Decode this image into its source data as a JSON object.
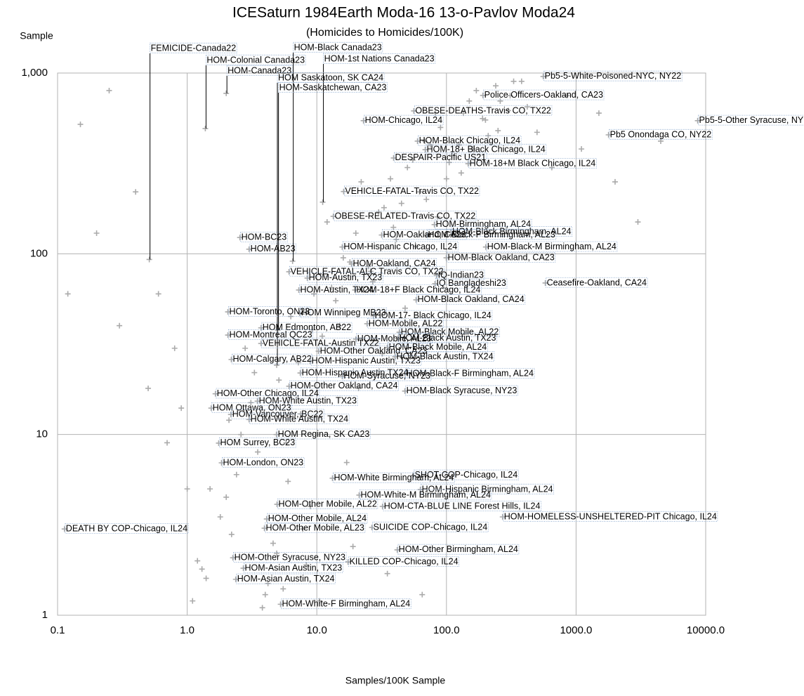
{
  "chart_data": {
    "type": "scatter",
    "title": "ICESaturn 1984Earth Moda-16 13-o-Pavlov Moda24",
    "subtitle": "(Homicides to Homicides/100K)",
    "y_label": "Sample",
    "x_label": "Samples/100K Sample",
    "log_x": true,
    "log_y": true,
    "grid": true,
    "color": "#aaaaaa",
    "xlim": [
      0.1,
      10000
    ],
    "ylim": [
      1,
      1000
    ],
    "xticks": [
      0.1,
      {
        "value": 1,
        "label": "1.0"
      },
      {
        "value": 10,
        "label": "10.0"
      },
      {
        "value": 100,
        "label": "100.0"
      },
      {
        "value": 1000,
        "label": "1000.0"
      },
      {
        "value": 10000,
        "label": "10000.0"
      }
    ],
    "yticks": [
      1,
      10,
      100,
      {
        "value": 1000,
        "label": "1,000"
      }
    ],
    "x": [
      1.2,
      1.5,
      2.1,
      2.8,
      3.5,
      4.2,
      5.1,
      6.3,
      7.8,
      9.5,
      12,
      15,
      18,
      22,
      27,
      33,
      41,
      50,
      62,
      75,
      90,
      110,
      135,
      170,
      210,
      260,
      330,
      420,
      1.1,
      1.8,
      2.4,
      3.1,
      4.6,
      5.8,
      7.2,
      8.9,
      11,
      14,
      17,
      21,
      26,
      32,
      39,
      48,
      58,
      70,
      85,
      105,
      130,
      160,
      200,
      250,
      310,
      0.15,
      0.25,
      0.4,
      0.6,
      0.8,
      0.9,
      1.3,
      2.0,
      2.6,
      3.3,
      4.0,
      4.9,
      6.0,
      7.5,
      9.2,
      13,
      16,
      20,
      25,
      30,
      37,
      45,
      55,
      68,
      82,
      100,
      125,
      150,
      190,
      240,
      300,
      380,
      500,
      650,
      850,
      1100,
      1500,
      2000,
      3000,
      4500,
      0.12,
      0.2,
      0.3,
      0.5,
      0.7,
      1.0,
      1.4,
      2.2,
      3.8,
      5.5,
      8.3,
      10.5,
      19,
      35,
      65
    ],
    "values": [
      2,
      5,
      12,
      30,
      8,
      1.5,
      20,
      45,
      3,
      60,
      150,
      40,
      90,
      250,
      70,
      180,
      120,
      300,
      220,
      400,
      500,
      350,
      600,
      800,
      450,
      700,
      900,
      650,
      1.2,
      3.5,
      6,
      15,
      2.5,
      9,
      25,
      4,
      35,
      55,
      7,
      18,
      80,
      28,
      140,
      50,
      110,
      200,
      160,
      320,
      280,
      380,
      550,
      480,
      750,
      520,
      800,
      220,
      60,
      30,
      14,
      1.8,
      4.5,
      10,
      22,
      1.3,
      2.2,
      5.5,
      13,
      38,
      65,
      95,
      130,
      85,
      170,
      260,
      190,
      330,
      420,
      600,
      260,
      400,
      700,
      560,
      850,
      620,
      900,
      470,
      300,
      750,
      380,
      600,
      250,
      150,
      420,
      60,
      130,
      40,
      18,
      9,
      5,
      1.6,
      2.8,
      1.1,
      1.4,
      1.9,
      1.2,
      2.4,
      1.7,
      1.3
    ],
    "annotations": [
      {
        "text": "FEMICIDE-Canada22",
        "x": 0.51,
        "y": 93
      },
      {
        "text": "HOM-Colonial Canada23",
        "x": 1.38,
        "y": 493
      },
      {
        "text": "HOM-Canada23",
        "x": 2.0,
        "y": 772
      },
      {
        "text": "HOM-Black Canada23",
        "x": 6.5,
        "y": 91
      },
      {
        "text": "HOM-1st Nations Canada23",
        "x": 11.1,
        "y": 193
      },
      {
        "text": "HOM Saskatoon, SK CA24",
        "x": 4.9,
        "y": 24.2
      },
      {
        "text": "HOM-Saskatchewan, CA23",
        "x": 5.0,
        "y": 37.8
      },
      {
        "text": "Pb5-5-White-Poisoned-NYC, NY22",
        "x": 558,
        "y": 957
      },
      {
        "text": "Police Officers-Oakland, CA23",
        "x": 191,
        "y": 752
      },
      {
        "text": "Pb5-5-Other Syracuse, NY",
        "x": 8670,
        "y": 545
      },
      {
        "text": "OBESE-DEATHS-Travis CO, TX22",
        "x": 56,
        "y": 617
      },
      {
        "text": "HOM-Chicago, IL24",
        "x": 22.9,
        "y": 545
      },
      {
        "text": "Pb5 Onondaga CO, NY22",
        "x": 1780,
        "y": 455
      },
      {
        "text": "HOM-Black Chicago, IL24",
        "x": 59.8,
        "y": 420
      },
      {
        "text": "HOM-18+ Black Chicago, IL24",
        "x": 68.6,
        "y": 377
      },
      {
        "text": "DESPAIR-Pacific US21",
        "x": 39.1,
        "y": 339
      },
      {
        "text": "HOM-18+M Black Chicago, IL24",
        "x": 147,
        "y": 315
      },
      {
        "text": "VEHICLE-FATAL-Travis CO, TX22",
        "x": 16.1,
        "y": 221
      },
      {
        "text": "OBESE-RELATED-Travis CO, TX22",
        "x": 13.4,
        "y": 161
      },
      {
        "text": "HOM-Birmingham, AL24",
        "x": 80.7,
        "y": 145
      },
      {
        "text": "HOM-Black Birmingham, AL24",
        "x": 108,
        "y": 132
      },
      {
        "text": "HOM-Oakland, CA23",
        "x": 31.6,
        "y": 127
      },
      {
        "text": "HOM-Black-F Birmingham, AL23",
        "x": 70.3,
        "y": 127
      },
      {
        "text": "HOM-Hispanic Chicago, IL24",
        "x": 15.7,
        "y": 109
      },
      {
        "text": "HOM-Black-M Birmingham, AL24",
        "x": 201,
        "y": 109
      },
      {
        "text": "HOM-BC23",
        "x": 2.55,
        "y": 123
      },
      {
        "text": "HOM-AB23",
        "x": 3.0,
        "y": 106
      },
      {
        "text": "HOM-Black Oakland, CA23",
        "x": 99.7,
        "y": 95
      },
      {
        "text": "HOM-Oakland, CA24",
        "x": 18.5,
        "y": 87.8
      },
      {
        "text": "VEHICLE-FATAL-ALC Travis CO, TX22",
        "x": 6.1,
        "y": 79.5
      },
      {
        "text": "IQ-Indian23",
        "x": 83.8,
        "y": 76
      },
      {
        "text": "HOM-Austin, TX23",
        "x": 8.44,
        "y": 73.4
      },
      {
        "text": "Ceasefire-Oakland, CA24",
        "x": 579,
        "y": 68.9
      },
      {
        "text": "IQ Bangladeshi23",
        "x": 81.6,
        "y": 68.3
      },
      {
        "text": "HOM-Austin, TX24",
        "x": 7.26,
        "y": 63
      },
      {
        "text": "HOM-18+F Black Chicago, IL24",
        "x": 19.7,
        "y": 63
      },
      {
        "text": "HOM-Black Oakland, CA24",
        "x": 58.3,
        "y": 55.6
      },
      {
        "text": "HOM-Toronto, ON23",
        "x": 2.06,
        "y": 47.7
      },
      {
        "text": "HOM Winnipeg MB23",
        "x": 7.37,
        "y": 46.9
      },
      {
        "text": "HOM-17- Black Chicago, IL24",
        "x": 27.3,
        "y": 45.3
      },
      {
        "text": "HOM-Mobile, AL22",
        "x": 24.4,
        "y": 41
      },
      {
        "text": "HOM Edmonton, AB22",
        "x": 3.71,
        "y": 38.9
      },
      {
        "text": "HOM-Black Mobile, AL22",
        "x": 43.3,
        "y": 36.8
      },
      {
        "text": "HOM-Montreal QC23",
        "x": 2.06,
        "y": 35.5
      },
      {
        "text": "HOM-Mobile, AL23",
        "x": 20,
        "y": 33.7
      },
      {
        "text": "HOM-Black Austin, TX23",
        "x": 42.1,
        "y": 34
      },
      {
        "text": "VEHICLE-FATAL-Austin TX22",
        "x": 3.71,
        "y": 31.9
      },
      {
        "text": "HOM-Black Mobile, AL24",
        "x": 35,
        "y": 30.3
      },
      {
        "text": "HOM-Other Oakland, CA23",
        "x": 10.3,
        "y": 28.9
      },
      {
        "text": "HOM-Calgary, AB22",
        "x": 2.19,
        "y": 26.0
      },
      {
        "text": "HOM-Hispanic Austin, TX23",
        "x": 8.87,
        "y": 25.5
      },
      {
        "text": "HOM-Black Austin, TX24",
        "x": 40.1,
        "y": 26.9
      },
      {
        "text": "HOM-Hispanic Austin TX24",
        "x": 7.45,
        "y": 21.9
      },
      {
        "text": "HOM-Black-F Birmingham, AL24",
        "x": 47.8,
        "y": 21.7
      },
      {
        "text": "HOM-Syracuse, NY23",
        "x": 15.7,
        "y": 21
      },
      {
        "text": "HOM-Other Oakland, CA24",
        "x": 6.1,
        "y": 18.5
      },
      {
        "text": "HOM-Black Syracuse, NY23",
        "x": 47.8,
        "y": 17.4
      },
      {
        "text": "HOM-Other Chicago, IL24",
        "x": 1.65,
        "y": 16.8
      },
      {
        "text": "HOM-White Austin, TX23",
        "x": 3.48,
        "y": 15.3
      },
      {
        "text": "HOM Ottawa, ON23",
        "x": 1.53,
        "y": 14.0
      },
      {
        "text": "HOM-Vancouver, BC22",
        "x": 2.17,
        "y": 12.9
      },
      {
        "text": "HOM-White Austin, TX24",
        "x": 3.0,
        "y": 12.1
      },
      {
        "text": "HOM Regina, SK CA23",
        "x": 4.88,
        "y": 10
      },
      {
        "text": "HOM Surrey, BC23",
        "x": 1.75,
        "y": 8.96
      },
      {
        "text": "HOM-London, ON23",
        "x": 1.84,
        "y": 6.97
      },
      {
        "text": "SHOT-COP-Chicago, IL24",
        "x": 55.5,
        "y": 5.94
      },
      {
        "text": "HOM-White Birmingham, AL24",
        "x": 13.2,
        "y": 5.73
      },
      {
        "text": "HOM-Hispanic Birmingham, AL24",
        "x": 62.9,
        "y": 4.96
      },
      {
        "text": "HOM-White-M Birmingham, AL24",
        "x": 21.2,
        "y": 4.62
      },
      {
        "text": "HOM-Other Mobile, AL22",
        "x": 4.93,
        "y": 4.11
      },
      {
        "text": "HOM-CTA-BLUE LINE Forest Hills, IL24",
        "x": 32.1,
        "y": 4.0
      },
      {
        "text": "HOM-HOMELESS-UNSHELTERED-PIT Chicago, IL24",
        "x": 271,
        "y": 3.5
      },
      {
        "text": "HOM-Other Mobile, AL24",
        "x": 4.1,
        "y": 3.41
      },
      {
        "text": "DEATH BY COP-Chicago, IL24",
        "x": 0.113,
        "y": 3.0
      },
      {
        "text": "HOM-Other Mobile, AL23",
        "x": 3.94,
        "y": 3.03
      },
      {
        "text": "SUICIDE COP-Chicago, IL24",
        "x": 26.6,
        "y": 3.06
      },
      {
        "text": "HOM-Other Birmingham, AL24",
        "x": 41.7,
        "y": 2.3
      },
      {
        "text": "HOM-Other Syracuse, NY23",
        "x": 2.25,
        "y": 2.08
      },
      {
        "text": "KILLED COP-Chicago, IL24",
        "x": 17.4,
        "y": 1.97
      },
      {
        "text": "HOM-Asian Austin, TX23",
        "x": 2.71,
        "y": 1.82
      },
      {
        "text": "HOM-Asian Austin, TX24",
        "x": 2.37,
        "y": 1.58
      },
      {
        "text": "HOM-White-F Birmingham, AL24",
        "x": 5.25,
        "y": 1.15
      }
    ]
  }
}
